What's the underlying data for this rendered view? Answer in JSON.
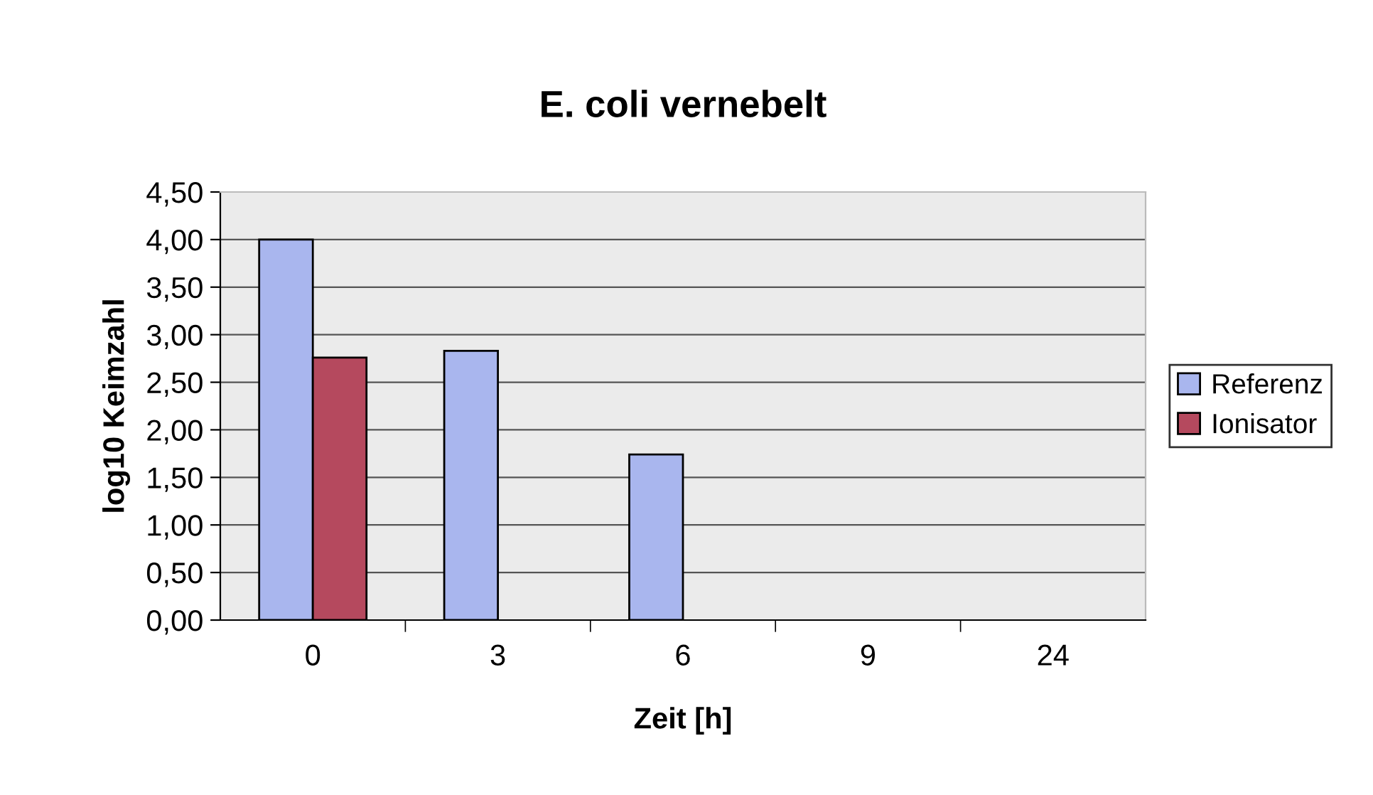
{
  "chart_data": {
    "type": "bar",
    "title": "E. coli vernebelt",
    "xlabel": "Zeit [h]",
    "ylabel": "log10 Keimzahl",
    "categories": [
      "0",
      "3",
      "6",
      "9",
      "24"
    ],
    "series": [
      {
        "name": "Referenz",
        "color": "#a9b6ee",
        "values": [
          4.0,
          2.83,
          1.74,
          null,
          null
        ]
      },
      {
        "name": "Ionisator",
        "color": "#b5495e",
        "values": [
          2.76,
          null,
          null,
          null,
          null
        ]
      }
    ],
    "ylim": [
      0,
      4.5
    ],
    "yticks": [
      {
        "value": 0,
        "label": "0,00"
      },
      {
        "value": 0.5,
        "label": "0,50"
      },
      {
        "value": 1,
        "label": "1,00"
      },
      {
        "value": 1.5,
        "label": "1,50"
      },
      {
        "value": 2,
        "label": "2,00"
      },
      {
        "value": 2.5,
        "label": "2,50"
      },
      {
        "value": 3,
        "label": "3,00"
      },
      {
        "value": 3.5,
        "label": "3,50"
      },
      {
        "value": 4,
        "label": "4,00"
      },
      {
        "value": 4.5,
        "label": "4,50"
      }
    ],
    "grid": "y",
    "legend": "right"
  }
}
